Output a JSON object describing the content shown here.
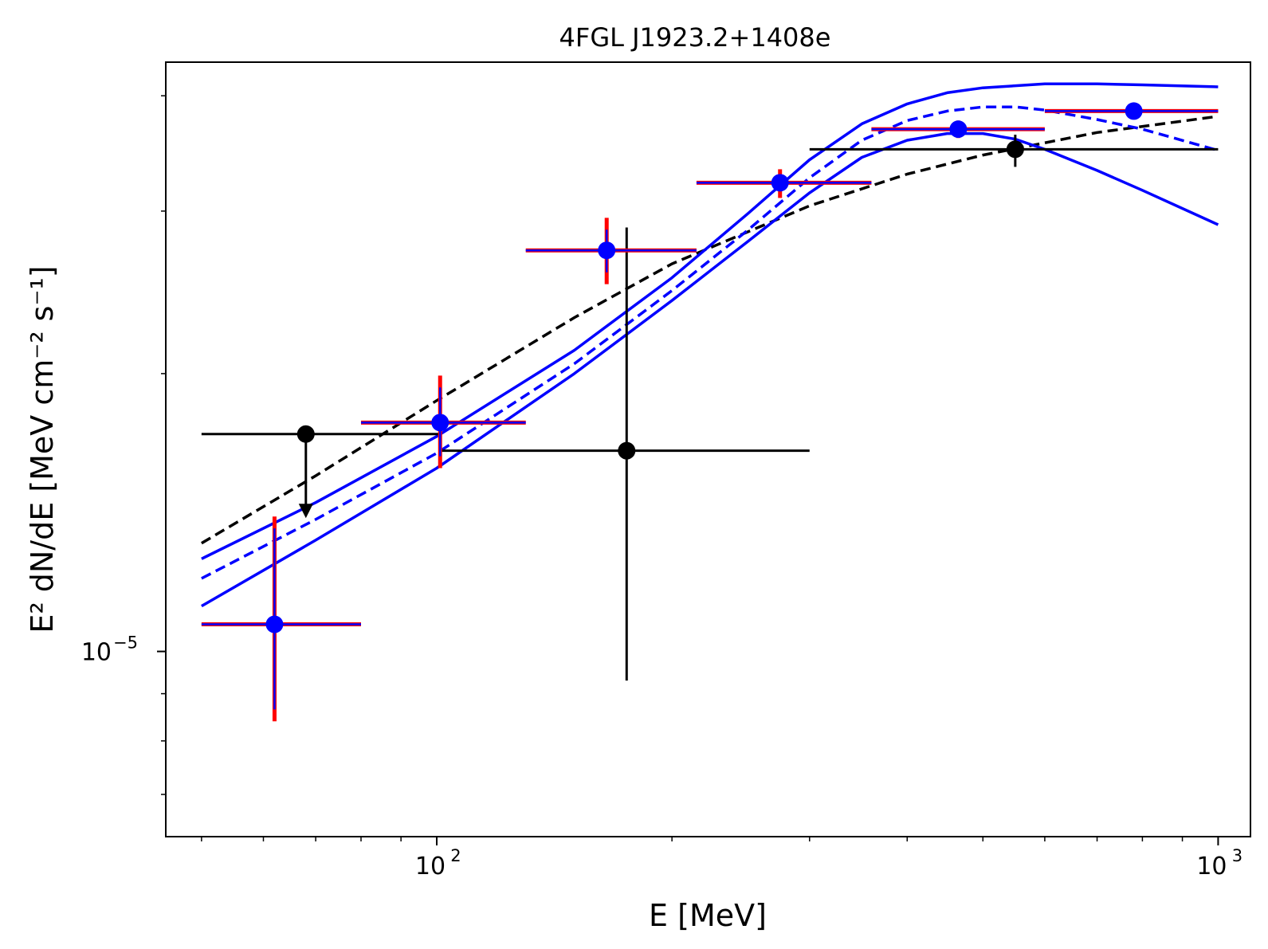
{
  "chart_data": {
    "type": "scatter",
    "title": "4FGL J1923.2+1408e",
    "xlabel": "E [MeV]",
    "ylabel": "E² dN/dE [MeV cm⁻² s⁻¹]",
    "x_scale": "log",
    "y_scale": "log",
    "xlim": [
      45,
      1100
    ],
    "ylim": [
      6.3e-06,
      4.35e-05
    ],
    "x_ticks": [
      {
        "value": 100,
        "label": "10",
        "exp": "2"
      },
      {
        "value": 1000,
        "label": "10",
        "exp": "3"
      }
    ],
    "y_ticks": [
      {
        "value": 1e-05,
        "label": "10",
        "exp": "−5"
      }
    ],
    "grid": false,
    "legend": "none",
    "colors": {
      "blue": "#0000ff",
      "red": "#ff0000",
      "black": "#000000"
    },
    "series": [
      {
        "style": "black-errorbars",
        "color": "#000000",
        "points": [
          {
            "x": 68,
            "y": 1.72e-05,
            "xlo": 50,
            "xhi": 101,
            "upper_limit": true,
            "arrow_to": 1.4e-05
          },
          {
            "x": 175,
            "y": 1.65e-05,
            "xlo": 101,
            "xhi": 300,
            "ylo": 9.3e-06,
            "yhi": 2.88e-05
          },
          {
            "x": 550,
            "y": 3.5e-05,
            "xlo": 300,
            "xhi": 1000,
            "ylo": 3.35e-05,
            "yhi": 3.63e-05
          }
        ]
      },
      {
        "style": "blue-points-red-errors",
        "color": "#0000ff",
        "errcolor": "#ff0000",
        "points": [
          {
            "x": 62,
            "y": 1.07e-05,
            "xlo": 50,
            "xhi": 80,
            "ylo": 8.4e-06,
            "yhi": 1.4e-05
          },
          {
            "x": 101,
            "y": 1.77e-05,
            "xlo": 80,
            "xhi": 130,
            "ylo": 1.58e-05,
            "yhi": 1.99e-05
          },
          {
            "x": 165,
            "y": 2.72e-05,
            "xlo": 130,
            "xhi": 215,
            "ylo": 2.5e-05,
            "yhi": 2.95e-05
          },
          {
            "x": 275,
            "y": 3.22e-05,
            "xlo": 215,
            "xhi": 360,
            "ylo": 3.1e-05,
            "yhi": 3.33e-05
          },
          {
            "x": 465,
            "y": 3.68e-05,
            "xlo": 360,
            "xhi": 600,
            "ylo": 3.6e-05,
            "yhi": 3.76e-05
          },
          {
            "x": 780,
            "y": 3.85e-05,
            "xlo": 600,
            "xhi": 1000,
            "ylo": 3.78e-05,
            "yhi": 3.92e-05
          }
        ]
      },
      {
        "style": "black-dashed",
        "color": "#000000",
        "x": [
          50,
          70,
          100,
          150,
          200,
          300,
          400,
          500,
          700,
          1000
        ],
        "y": [
          1.31e-05,
          1.55e-05,
          1.87e-05,
          2.3e-05,
          2.63e-05,
          3.04e-05,
          3.29e-05,
          3.45e-05,
          3.65e-05,
          3.8e-05
        ]
      },
      {
        "style": "blue-solid-upper",
        "color": "#0000ff",
        "x": [
          50,
          70,
          100,
          150,
          200,
          250,
          300,
          350,
          400,
          450,
          500,
          600,
          700,
          800,
          1000
        ],
        "y": [
          1.26e-05,
          1.45e-05,
          1.71e-05,
          2.12e-05,
          2.54e-05,
          2.98e-05,
          3.41e-05,
          3.73e-05,
          3.92e-05,
          4.03e-05,
          4.08e-05,
          4.12e-05,
          4.12e-05,
          4.11e-05,
          4.09e-05
        ]
      },
      {
        "style": "blue-dashed",
        "color": "#0000ff",
        "x": [
          50,
          70,
          100,
          150,
          200,
          250,
          300,
          350,
          400,
          450,
          500,
          550,
          600,
          700,
          800,
          1000
        ],
        "y": [
          1.2e-05,
          1.39e-05,
          1.64e-05,
          2.05e-05,
          2.46e-05,
          2.86e-05,
          3.26e-05,
          3.58e-05,
          3.76e-05,
          3.85e-05,
          3.89e-05,
          3.89e-05,
          3.86e-05,
          3.77e-05,
          3.68e-05,
          3.49e-05
        ]
      },
      {
        "style": "blue-solid-lower",
        "color": "#0000ff",
        "x": [
          50,
          70,
          100,
          150,
          200,
          250,
          300,
          350,
          400,
          450,
          500,
          550,
          600,
          700,
          800,
          1000
        ],
        "y": [
          1.12e-05,
          1.32e-05,
          1.58e-05,
          2e-05,
          2.4e-05,
          2.78e-05,
          3.14e-05,
          3.43e-05,
          3.58e-05,
          3.64e-05,
          3.64e-05,
          3.59e-05,
          3.5e-05,
          3.32e-05,
          3.16e-05,
          2.9e-05
        ]
      }
    ]
  }
}
